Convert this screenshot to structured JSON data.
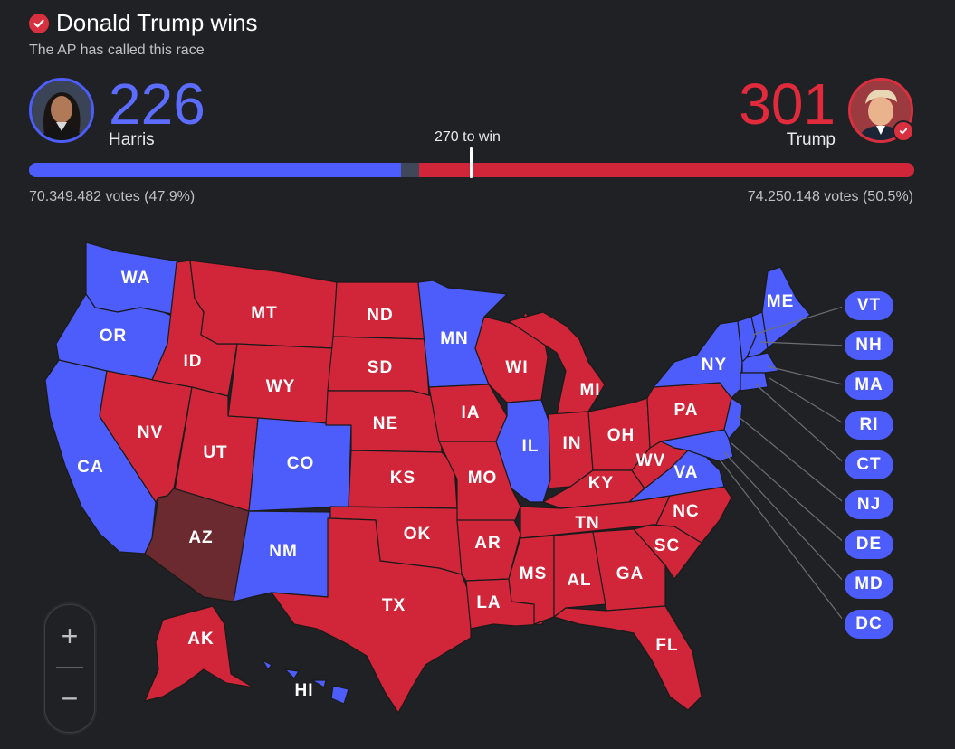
{
  "header": {
    "title": "Donald Trump wins",
    "subtitle": "The AP has called this race"
  },
  "candidates": {
    "harris": {
      "name": "Harris",
      "electoral_votes": "226",
      "votes_text": "70.349.482 votes (47.9%)",
      "color": "#4d5dfb"
    },
    "trump": {
      "name": "Trump",
      "electoral_votes": "301",
      "votes_text": "74.250.148 votes (50.5%)",
      "color": "#d1263a"
    }
  },
  "threshold_label": "270 to win",
  "bar": {
    "harris_ev": 226,
    "uncalled_ev": 11,
    "trump_ev": 301,
    "total_ev": 538
  },
  "colors": {
    "dem": "#4d5dfb",
    "rep": "#d1263a",
    "leading_rep": "#6b2a2f",
    "background": "#202124"
  },
  "states": {
    "WA": "dem",
    "OR": "dem",
    "CA": "dem",
    "NV": "rep",
    "ID": "rep",
    "MT": "rep",
    "WY": "rep",
    "UT": "rep",
    "AZ": "leading_rep",
    "CO": "dem",
    "NM": "dem",
    "ND": "rep",
    "SD": "rep",
    "NE": "rep",
    "KS": "rep",
    "OK": "rep",
    "TX": "rep",
    "MN": "dem",
    "IA": "rep",
    "MO": "rep",
    "AR": "rep",
    "LA": "rep",
    "WI": "rep",
    "IL": "dem",
    "MI": "rep",
    "IN": "rep",
    "OH": "rep",
    "KY": "rep",
    "TN": "rep",
    "MS": "rep",
    "AL": "rep",
    "GA": "rep",
    "FL": "rep",
    "SC": "rep",
    "NC": "rep",
    "VA": "dem",
    "WV": "rep",
    "PA": "rep",
    "NY": "dem",
    "ME": "dem",
    "AK": "rep",
    "HI": "dem"
  },
  "small_states": [
    "VT",
    "NH",
    "MA",
    "RI",
    "CT",
    "NJ",
    "DE",
    "MD",
    "DC"
  ],
  "labels": {
    "WA": "WA",
    "OR": "OR",
    "CA": "CA",
    "NV": "NV",
    "ID": "ID",
    "MT": "MT",
    "WY": "WY",
    "UT": "UT",
    "AZ": "AZ",
    "CO": "CO",
    "NM": "NM",
    "ND": "ND",
    "SD": "SD",
    "NE": "NE",
    "KS": "KS",
    "OK": "OK",
    "TX": "TX",
    "MN": "MN",
    "IA": "IA",
    "MO": "MO",
    "AR": "AR",
    "LA": "LA",
    "WI": "WI",
    "IL": "IL",
    "MI": "MI",
    "IN": "IN",
    "OH": "OH",
    "KY": "KY",
    "TN": "TN",
    "MS": "MS",
    "AL": "AL",
    "GA": "GA",
    "FL": "FL",
    "SC": "SC",
    "NC": "NC",
    "VA": "VA",
    "WV": "WV",
    "PA": "PA",
    "NY": "NY",
    "ME": "ME",
    "AK": "AK",
    "HI": "HI",
    "VT": "VT",
    "NH": "NH",
    "MA": "MA",
    "RI": "RI",
    "CT": "CT",
    "NJ": "NJ",
    "DE": "DE",
    "MD": "MD",
    "DC": "DC"
  },
  "zoom": {
    "in_icon": "plus-icon",
    "out_icon": "minus-icon",
    "in_label": "+",
    "out_label": "−"
  }
}
